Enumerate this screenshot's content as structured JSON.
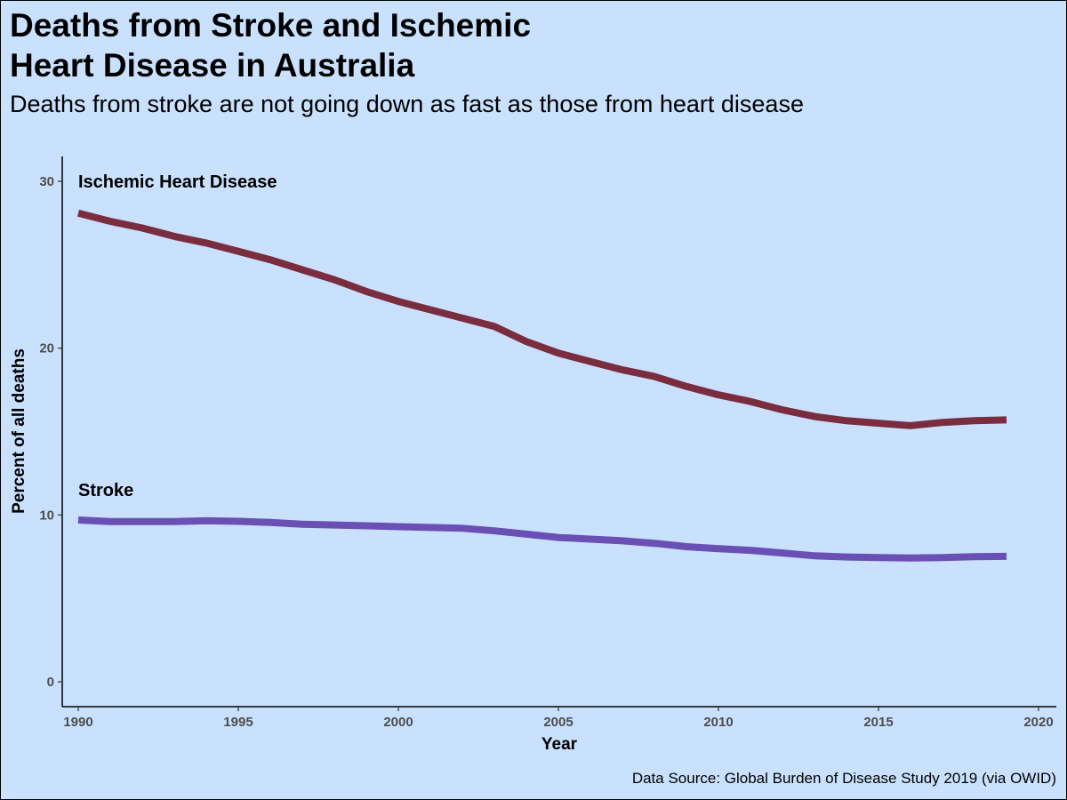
{
  "title_line1": "Deaths from Stroke and Ischemic",
  "title_line2": "Heart Disease in Australia",
  "subtitle": "Deaths from stroke are not going down as fast as those from heart disease",
  "source": "Data Source: Global Burden of Disease Study 2019 (via OWID)",
  "chart_data": {
    "type": "line",
    "xlabel": "Year",
    "ylabel": "Percent of all deaths",
    "xlim": [
      1990,
      2020
    ],
    "ylim": [
      0,
      30
    ],
    "x_ticks": [
      1990,
      1995,
      2000,
      2005,
      2010,
      2015,
      2020
    ],
    "y_ticks": [
      0,
      10,
      20,
      30
    ],
    "grid": false,
    "legend": "none",
    "x": [
      1990,
      1991,
      1992,
      1993,
      1994,
      1995,
      1996,
      1997,
      1998,
      1999,
      2000,
      2001,
      2002,
      2003,
      2004,
      2005,
      2006,
      2007,
      2008,
      2009,
      2010,
      2011,
      2012,
      2013,
      2014,
      2015,
      2016,
      2017,
      2018,
      2019
    ],
    "series": [
      {
        "name": "Ischemic Heart Disease",
        "color": "#7b2d40",
        "values": [
          28.1,
          27.6,
          27.2,
          26.7,
          26.3,
          25.8,
          25.3,
          24.7,
          24.1,
          23.4,
          22.8,
          22.3,
          21.8,
          21.3,
          20.4,
          19.7,
          19.2,
          18.7,
          18.3,
          17.7,
          17.2,
          16.8,
          16.3,
          15.9,
          15.65,
          15.5,
          15.35,
          15.55,
          15.65,
          15.7
        ]
      },
      {
        "name": "Stroke",
        "color": "#6a50b4",
        "values": [
          9.7,
          9.6,
          9.6,
          9.6,
          9.65,
          9.62,
          9.55,
          9.45,
          9.4,
          9.35,
          9.3,
          9.25,
          9.2,
          9.05,
          8.85,
          8.65,
          8.55,
          8.45,
          8.3,
          8.1,
          7.98,
          7.88,
          7.72,
          7.55,
          7.48,
          7.45,
          7.42,
          7.45,
          7.5,
          7.52
        ]
      }
    ]
  }
}
